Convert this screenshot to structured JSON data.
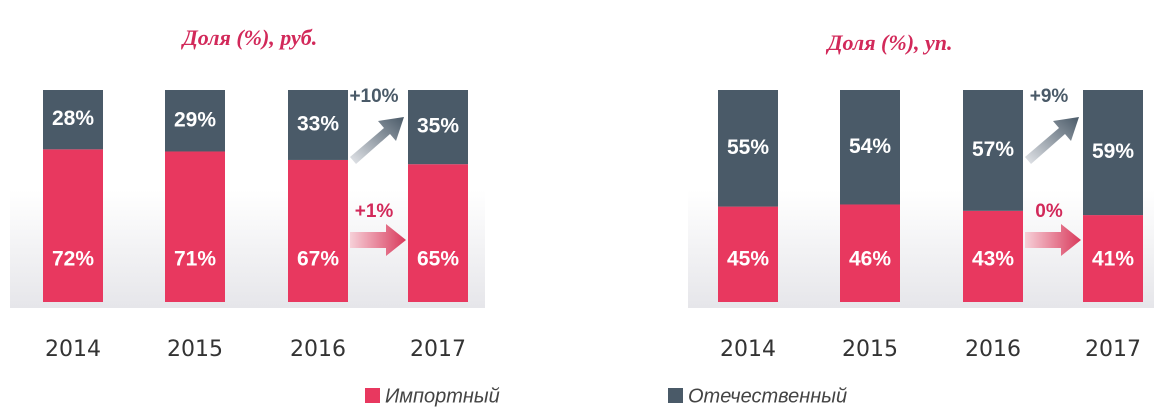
{
  "chart_data": [
    {
      "type": "bar",
      "stacked": true,
      "title": "Доля (%), руб.",
      "categories": [
        "2014",
        "2015",
        "2016",
        "2017"
      ],
      "series": [
        {
          "name": "Импортный",
          "color": "#e8385f",
          "values": [
            72,
            71,
            67,
            65
          ],
          "value_labels": [
            "72%",
            "71%",
            "67%",
            "65%"
          ]
        },
        {
          "name": "Отечественный",
          "color": "#4a5a68",
          "values": [
            28,
            29,
            33,
            35
          ],
          "value_labels": [
            "28%",
            "29%",
            "33%",
            "35%"
          ]
        }
      ],
      "annotations": [
        {
          "text": "+10%",
          "series": 1
        },
        {
          "text": "+1%",
          "series": 0
        }
      ]
    },
    {
      "type": "bar",
      "stacked": true,
      "title": "Доля (%), уп.",
      "categories": [
        "2014",
        "2015",
        "2016",
        "2017"
      ],
      "series": [
        {
          "name": "Импортный",
          "color": "#e8385f",
          "values": [
            45,
            46,
            43,
            41
          ],
          "value_labels": [
            "45%",
            "46%",
            "43%",
            "41%"
          ]
        },
        {
          "name": "Отечественный",
          "color": "#4a5a68",
          "values": [
            55,
            54,
            57,
            59
          ],
          "value_labels": [
            "55%",
            "54%",
            "57%",
            "59%"
          ]
        }
      ],
      "annotations": [
        {
          "text": "+9%",
          "series": 1
        },
        {
          "text": "0%",
          "series": 0
        }
      ]
    }
  ]
}
